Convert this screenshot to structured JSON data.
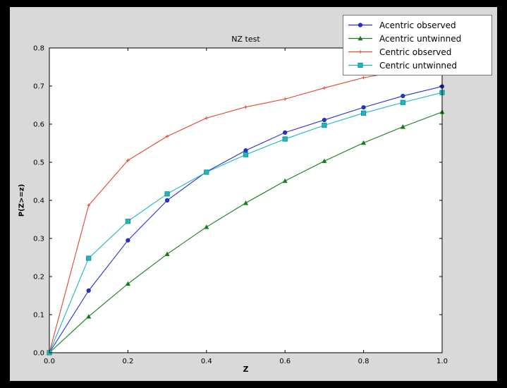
{
  "window": {
    "outer_bg": "#000000",
    "figure_bg": "#d9d9d9",
    "plot_bg": "#ffffff",
    "frame_color": "#000000",
    "legend_border": "#787878"
  },
  "chart_data": {
    "type": "line",
    "title": "NZ test",
    "xlabel": "Z",
    "ylabel": "P(Z>=z)",
    "grid": false,
    "legend_position": "upper right",
    "xlim": [
      0.0,
      1.0
    ],
    "ylim": [
      0.0,
      0.8
    ],
    "x_ticks": [
      0.0,
      0.2,
      0.4,
      0.6,
      0.8,
      1.0
    ],
    "x_tick_labels": [
      "0.0",
      "0.2",
      "0.4",
      "0.6",
      "0.8",
      "1.0"
    ],
    "y_ticks": [
      0.0,
      0.1,
      0.2,
      0.3,
      0.4,
      0.5,
      0.6,
      0.7,
      0.8
    ],
    "y_tick_labels": [
      "0.0",
      "0.1",
      "0.2",
      "0.3",
      "0.4",
      "0.5",
      "0.6",
      "0.7",
      "0.8"
    ],
    "x": [
      0.0,
      0.1,
      0.2,
      0.3,
      0.4,
      0.5,
      0.6,
      0.7,
      0.8,
      0.9,
      1.0
    ],
    "series": [
      {
        "name": "Acentric observed",
        "color": "#2433d0",
        "marker": "circle",
        "marker_edge": "#1a27a8",
        "values": [
          0.0,
          0.163,
          0.295,
          0.4,
          0.475,
          0.531,
          0.578,
          0.611,
          0.644,
          0.674,
          0.699
        ]
      },
      {
        "name": "Acentric untwinned",
        "color": "#157f17",
        "marker": "triangle",
        "marker_edge": "#0e5e10",
        "values": [
          0.0,
          0.095,
          0.181,
          0.259,
          0.33,
          0.393,
          0.451,
          0.503,
          0.551,
          0.593,
          0.632
        ]
      },
      {
        "name": "Centric observed",
        "color": "#e8432c",
        "marker": "plus",
        "marker_edge": "#e8432c",
        "values": [
          0.0,
          0.387,
          0.505,
          0.568,
          0.616,
          0.645,
          0.666,
          0.695,
          0.722,
          0.74,
          0.756
        ]
      },
      {
        "name": "Centric untwinned",
        "color": "#1cb8bd",
        "marker": "square",
        "marker_edge": "#0d8a8f",
        "values": [
          0.0,
          0.248,
          0.345,
          0.417,
          0.474,
          0.52,
          0.561,
          0.597,
          0.629,
          0.657,
          0.683
        ]
      }
    ]
  }
}
